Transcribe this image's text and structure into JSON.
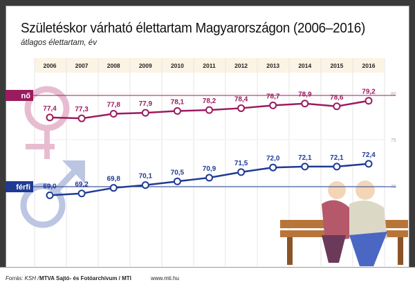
{
  "title": "Születéskor várható élettartam Magyarországon (2006–2016)",
  "subtitle": "átlagos élettartam, év",
  "footer": {
    "source": "Forrás: KSH / ",
    "agency": "MTVA Sajtó- és Fotóarchívum / MTI",
    "url": "www.mti.hu"
  },
  "chart_data": {
    "type": "line",
    "title": "Születéskor várható élettartam Magyarországon (2006–2016)",
    "subtitle": "átlagos élettartam, év",
    "x": [
      "2006",
      "2007",
      "2008",
      "2009",
      "2010",
      "2011",
      "2012",
      "2013",
      "2014",
      "2015",
      "2016"
    ],
    "yticks": [
      "80",
      "75",
      "70"
    ],
    "ylim": [
      69,
      80
    ],
    "grid": true,
    "series": [
      {
        "name": "nő",
        "color": "#9b1b5f",
        "values": [
          77.4,
          77.3,
          77.8,
          77.9,
          78.1,
          78.2,
          78.4,
          78.7,
          78.9,
          78.6,
          79.2
        ],
        "labels": [
          "77,4",
          "77,3",
          "77,8",
          "77,9",
          "78,1",
          "78,2",
          "78,4",
          "78,7",
          "78,9",
          "78,6",
          "79,2"
        ]
      },
      {
        "name": "férfi",
        "color": "#1f3a93",
        "values": [
          69.0,
          69.2,
          69.8,
          70.1,
          70.5,
          70.9,
          71.5,
          72.0,
          72.1,
          72.1,
          72.4
        ],
        "labels": [
          "69,0",
          "69,2",
          "69,8",
          "70,1",
          "70,5",
          "70,9",
          "71,5",
          "72,0",
          "72,1",
          "72,1",
          "72,4"
        ]
      }
    ]
  }
}
